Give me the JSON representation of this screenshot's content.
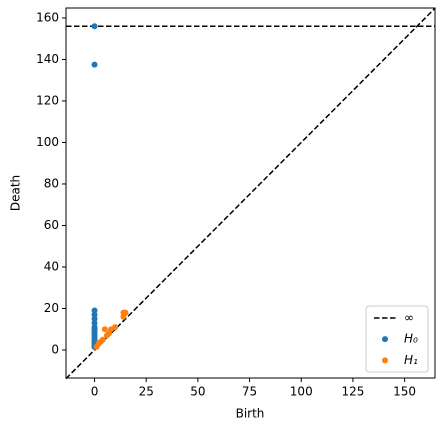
{
  "chart_data": {
    "type": "scatter",
    "xlabel": "Birth",
    "ylabel": "Death",
    "xlim": [
      -13.8,
      164.7
    ],
    "ylim": [
      -13.5,
      164.8
    ],
    "xticks": [
      0,
      25,
      50,
      75,
      100,
      125,
      150
    ],
    "yticks": [
      0,
      20,
      40,
      60,
      80,
      100,
      120,
      140,
      160
    ],
    "infinity_line": {
      "name": "∞",
      "value": 156,
      "color": "#000000"
    },
    "legend": "lower right",
    "series": [
      {
        "name": "H₀",
        "color": "#1f77b4",
        "x": [
          0,
          0,
          0,
          0,
          0,
          0,
          0,
          0,
          0,
          0,
          0,
          0,
          0,
          0,
          0,
          0,
          0
        ],
        "values": [
          156,
          137.5,
          19,
          17,
          15,
          13,
          11,
          10,
          9,
          8,
          7,
          6,
          5,
          4,
          3,
          2,
          1.5
        ]
      },
      {
        "name": "H₁",
        "color": "#ff7f0e",
        "x": [
          1,
          2,
          3,
          4,
          5,
          6,
          7,
          8,
          10,
          14,
          14,
          15
        ],
        "values": [
          1.5,
          3,
          4,
          5,
          10,
          7,
          8,
          10,
          11,
          16,
          18,
          18
        ]
      }
    ]
  }
}
